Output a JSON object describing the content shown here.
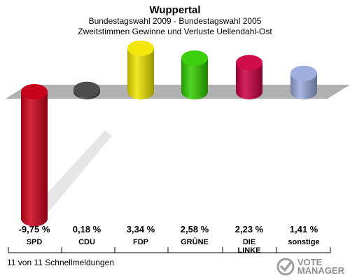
{
  "header": {
    "title": "Wuppertal",
    "subtitle1": "Bundestagswahl 2009 - Bundestagswahl 2005",
    "subtitle2": "Zweitstimmen Gewinne und Verluste Uellendahl-Ost"
  },
  "footer": {
    "text": "11 von 11 Schnellmeldungen"
  },
  "logo": {
    "line1": "VOTE",
    "line2": "MANAGER",
    "icon": "vote-manager-logo-icon"
  },
  "chart_data": {
    "type": "bar",
    "title": "Wuppertal",
    "subtitle": "Bundestagswahl 2009 - Bundestagswahl 2005 / Zweitstimmen Gewinne und Verluste Uellendahl-Ost",
    "categories": [
      "SPD",
      "CDU",
      "FDP",
      "GRÜNE",
      "DIE LINKE",
      "sonstige"
    ],
    "category_lines": [
      [
        "SPD"
      ],
      [
        "CDU"
      ],
      [
        "FDP"
      ],
      [
        "GRÜNE"
      ],
      [
        "DIE",
        "LINKE"
      ],
      [
        "sonstige"
      ]
    ],
    "values": [
      -9.75,
      0.18,
      3.34,
      2.58,
      2.23,
      1.41
    ],
    "value_labels": [
      "-9,75 %",
      "0,18 %",
      "3,34 %",
      "2,58 %",
      "2,23 %",
      "1,41 %"
    ],
    "colors": [
      "#d0021b",
      "#444444",
      "#f2e600",
      "#33cc00",
      "#cc0044",
      "#99aadd"
    ],
    "baseline_color": "#b0b0b0",
    "xlabel": "",
    "ylabel": "",
    "grid": false
  }
}
